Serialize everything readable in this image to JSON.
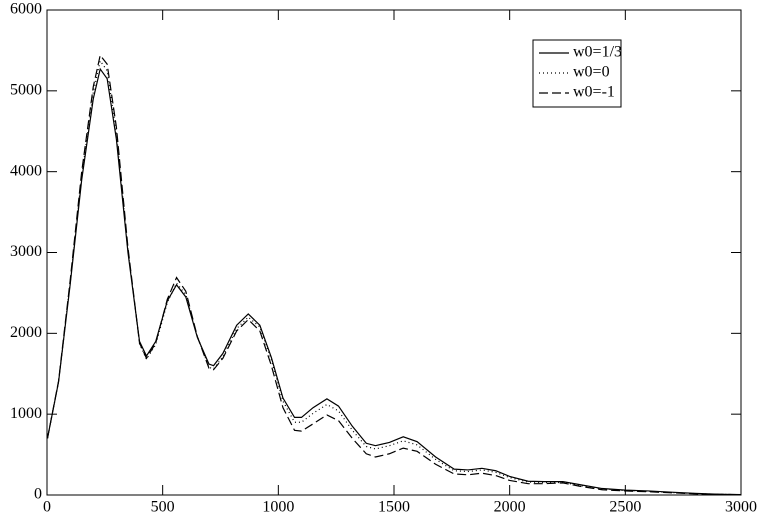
{
  "chart_data": {
    "type": "line",
    "x": [
      2,
      50,
      100,
      150,
      200,
      230,
      260,
      300,
      350,
      400,
      430,
      470,
      520,
      560,
      600,
      650,
      700,
      720,
      760,
      820,
      870,
      920,
      970,
      1020,
      1070,
      1100,
      1150,
      1210,
      1260,
      1320,
      1380,
      1420,
      1480,
      1540,
      1600,
      1680,
      1760,
      1820,
      1880,
      1940,
      2000,
      2080,
      2150,
      2230,
      2300,
      2400,
      2500,
      2600,
      2700,
      2800,
      2900,
      3000
    ],
    "series": [
      {
        "name": "w0=1/3",
        "color": "#000000",
        "dash": "solid",
        "values": [
          700,
          1400,
          2600,
          3900,
          4900,
          5270,
          5150,
          4400,
          3000,
          1900,
          1720,
          1900,
          2400,
          2600,
          2450,
          1950,
          1620,
          1600,
          1750,
          2100,
          2240,
          2100,
          1700,
          1200,
          960,
          960,
          1080,
          1190,
          1100,
          850,
          640,
          610,
          650,
          720,
          660,
          470,
          320,
          310,
          330,
          300,
          230,
          170,
          165,
          165,
          130,
          80,
          60,
          50,
          35,
          20,
          10,
          5
        ]
      },
      {
        "name": "w0=0",
        "color": "#000000",
        "dash": "dotted",
        "values": [
          700,
          1400,
          2620,
          3950,
          4980,
          5370,
          5250,
          4480,
          3020,
          1870,
          1680,
          1860,
          2380,
          2620,
          2480,
          1960,
          1580,
          1560,
          1710,
          2060,
          2200,
          2080,
          1670,
          1160,
          900,
          900,
          1010,
          1120,
          1040,
          800,
          600,
          570,
          610,
          670,
          620,
          440,
          300,
          290,
          310,
          280,
          215,
          160,
          155,
          155,
          120,
          75,
          55,
          45,
          30,
          18,
          9,
          4
        ]
      },
      {
        "name": "w0=-1",
        "color": "#000000",
        "dash": "dashed",
        "values": [
          700,
          1410,
          2650,
          4000,
          5050,
          5440,
          5330,
          4550,
          3060,
          1880,
          1690,
          1880,
          2420,
          2690,
          2520,
          1960,
          1570,
          1550,
          1690,
          2030,
          2170,
          2030,
          1600,
          1080,
          800,
          790,
          880,
          990,
          920,
          700,
          510,
          470,
          510,
          580,
          540,
          380,
          260,
          250,
          270,
          240,
          180,
          140,
          140,
          150,
          110,
          65,
          50,
          40,
          28,
          15,
          8,
          4
        ]
      }
    ],
    "xlim": [
      0,
      3000
    ],
    "xticks": [
      0,
      500,
      1000,
      1500,
      2000,
      2500,
      3000
    ],
    "ylim": [
      0,
      6000
    ],
    "yticks": [
      0,
      1000,
      2000,
      3000,
      4000,
      5000,
      6000
    ],
    "legend": "upper right"
  }
}
